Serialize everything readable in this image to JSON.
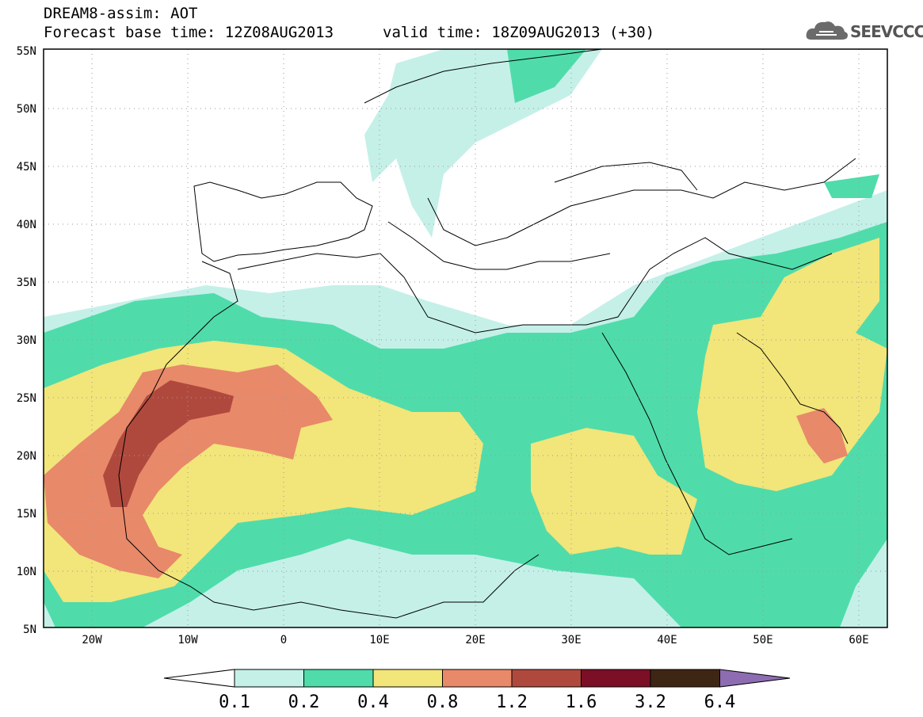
{
  "header": {
    "title": "DREAM8-assim: AOT",
    "base_time": "Forecast base time: 12Z08AUG2013",
    "valid_time": "valid time: 18Z09AUG2013 (+30)"
  },
  "logo": {
    "text": "SEEVCCC",
    "icon": "cloud-logo-icon"
  },
  "lat_labels": [
    "55N",
    "50N",
    "45N",
    "40N",
    "35N",
    "30N",
    "25N",
    "20N",
    "15N",
    "10N",
    "5N"
  ],
  "lon_labels": [
    "20W",
    "10W",
    "0",
    "10E",
    "20E",
    "30E",
    "40E",
    "50E",
    "60E"
  ],
  "colorbar": {
    "colors": [
      "#c4f0e8",
      "#4fdcaa",
      "#f2e57a",
      "#e8896a",
      "#b0493d",
      "#7a0f26",
      "#3e2615"
    ],
    "under_color": "#ffffff",
    "over_color": "#8e6cb2",
    "labels": [
      "0.1",
      "0.2",
      "0.4",
      "0.8",
      "1.2",
      "1.6",
      "3.2",
      "6.4"
    ]
  }
}
